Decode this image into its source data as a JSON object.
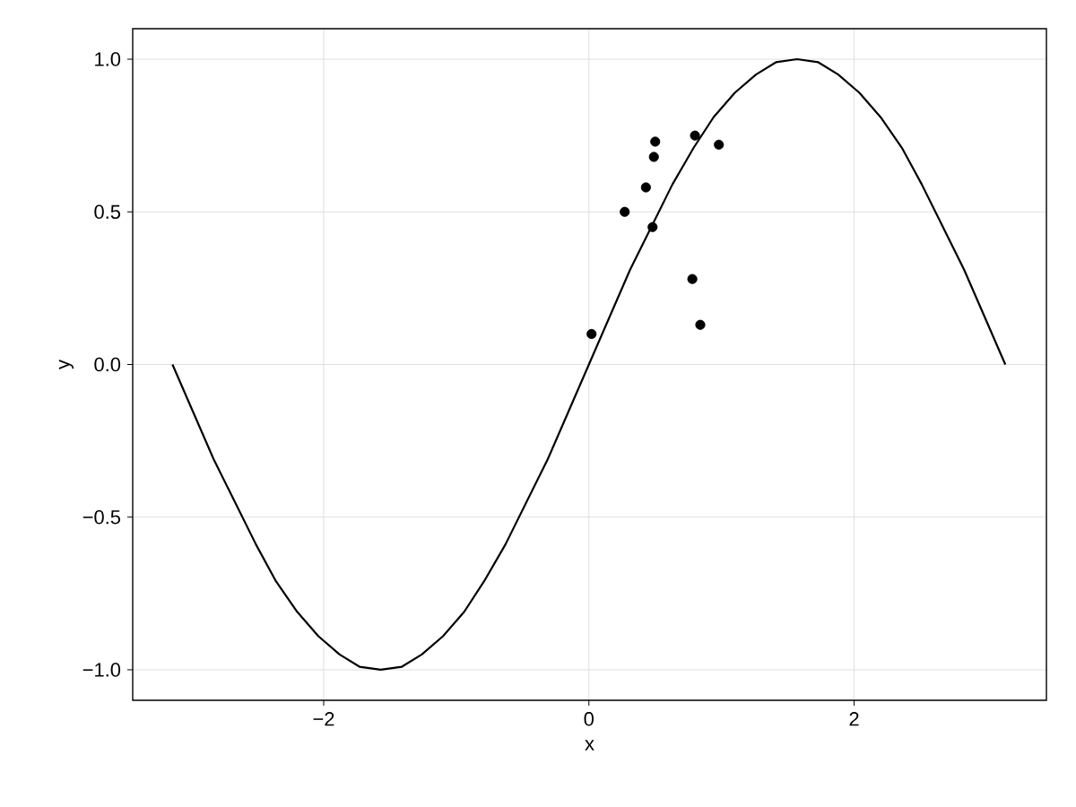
{
  "chart_data": {
    "type": "line",
    "xlabel": "x",
    "ylabel": "y",
    "xlim": [
      -3.44,
      3.45
    ],
    "ylim": [
      -1.1,
      1.1
    ],
    "xticks": [
      {
        "value": -2,
        "label": "−2"
      },
      0,
      2
    ],
    "yticks": [
      {
        "value": -1,
        "label": "−1.0"
      },
      {
        "value": -0.5,
        "label": "−0.5"
      },
      {
        "value": 0,
        "label": "0.0"
      },
      {
        "value": 0.5,
        "label": "0.5"
      },
      {
        "value": 1,
        "label": "1.0"
      }
    ],
    "grid": true,
    "series": [
      {
        "color": "#000000",
        "marker": "none",
        "x": [
          -3.14,
          -2.98,
          -2.83,
          -2.67,
          -2.51,
          -2.36,
          -2.2,
          -2.04,
          -1.88,
          -1.73,
          -1.57,
          -1.41,
          -1.26,
          -1.1,
          -0.94,
          -0.79,
          -0.63,
          -0.47,
          -0.31,
          -0.16,
          0,
          0.16,
          0.31,
          0.47,
          0.63,
          0.79,
          0.94,
          1.1,
          1.26,
          1.41,
          1.57,
          1.73,
          1.88,
          2.04,
          2.2,
          2.36,
          2.51,
          2.67,
          2.83,
          2.98,
          3.14
        ],
        "values": [
          0,
          -0.16,
          -0.31,
          -0.45,
          -0.59,
          -0.71,
          -0.81,
          -0.89,
          -0.95,
          -0.99,
          -1,
          -0.99,
          -0.95,
          -0.89,
          -0.81,
          -0.71,
          -0.59,
          -0.45,
          -0.31,
          -0.16,
          0,
          0.16,
          0.31,
          0.45,
          0.59,
          0.71,
          0.81,
          0.89,
          0.95,
          0.99,
          1,
          0.99,
          0.95,
          0.89,
          0.81,
          0.71,
          0.59,
          0.45,
          0.31,
          0.16,
          0
        ]
      },
      {
        "type": "scatter",
        "color": "#000000",
        "marker": "circle",
        "x": [
          0.02,
          0.27,
          0.43,
          0.48,
          0.49,
          0.5,
          0.8,
          0.98,
          0.78,
          0.84
        ],
        "values": [
          0.1,
          0.5,
          0.58,
          0.45,
          0.68,
          0.73,
          0.75,
          0.72,
          0.28,
          0.13
        ]
      }
    ]
  }
}
